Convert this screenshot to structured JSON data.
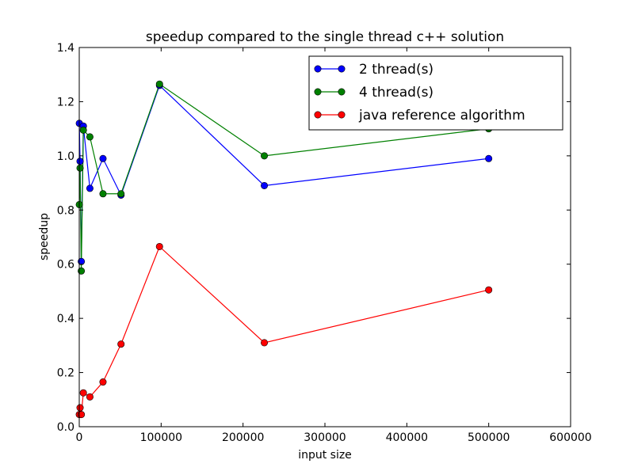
{
  "chart_data": {
    "type": "line",
    "title": "speedup compared to the single thread c++ solution",
    "xlabel": "input size",
    "ylabel": "speedup",
    "xlim": [
      0,
      600000
    ],
    "ylim": [
      0.0,
      1.4
    ],
    "xticks": [
      0,
      100000,
      200000,
      300000,
      400000,
      500000,
      600000
    ],
    "xtick_labels": [
      "0",
      "100000",
      "200000",
      "300000",
      "400000",
      "500000",
      "600000"
    ],
    "yticks": [
      0.0,
      0.2,
      0.4,
      0.6,
      0.8,
      1.0,
      1.2,
      1.4
    ],
    "ytick_labels": [
      "0.0",
      "0.2",
      "0.4",
      "0.6",
      "0.8",
      "1.0",
      "1.2",
      "1.4"
    ],
    "grid": false,
    "legend_position": "top-right",
    "series": [
      {
        "name": "2 thread(s)",
        "color": "#0000ff",
        "points": [
          {
            "x": 100,
            "y": 1.12
          },
          {
            "x": 1000,
            "y": 0.98
          },
          {
            "x": 2500,
            "y": 0.61
          },
          {
            "x": 5000,
            "y": 1.11
          },
          {
            "x": 13000,
            "y": 0.88
          },
          {
            "x": 29000,
            "y": 0.99
          },
          {
            "x": 51000,
            "y": 0.855
          },
          {
            "x": 98000,
            "y": 1.26
          },
          {
            "x": 226000,
            "y": 0.89
          },
          {
            "x": 500000,
            "y": 0.99
          }
        ]
      },
      {
        "name": "4 thread(s)",
        "color": "#008000",
        "points": [
          {
            "x": 100,
            "y": 0.82
          },
          {
            "x": 1000,
            "y": 0.955
          },
          {
            "x": 2500,
            "y": 0.575
          },
          {
            "x": 5000,
            "y": 1.095
          },
          {
            "x": 13000,
            "y": 1.07
          },
          {
            "x": 29000,
            "y": 0.86
          },
          {
            "x": 51000,
            "y": 0.86
          },
          {
            "x": 98000,
            "y": 1.265
          },
          {
            "x": 226000,
            "y": 1.0
          },
          {
            "x": 500000,
            "y": 1.1
          }
        ]
      },
      {
        "name": "java reference algorithm",
        "color": "#ff0000",
        "points": [
          {
            "x": 100,
            "y": 0.045
          },
          {
            "x": 1000,
            "y": 0.07
          },
          {
            "x": 2500,
            "y": 0.045
          },
          {
            "x": 5000,
            "y": 0.125
          },
          {
            "x": 13000,
            "y": 0.11
          },
          {
            "x": 29000,
            "y": 0.165
          },
          {
            "x": 51000,
            "y": 0.305
          },
          {
            "x": 98000,
            "y": 0.665
          },
          {
            "x": 226000,
            "y": 0.31
          },
          {
            "x": 500000,
            "y": 0.505
          }
        ]
      }
    ]
  }
}
